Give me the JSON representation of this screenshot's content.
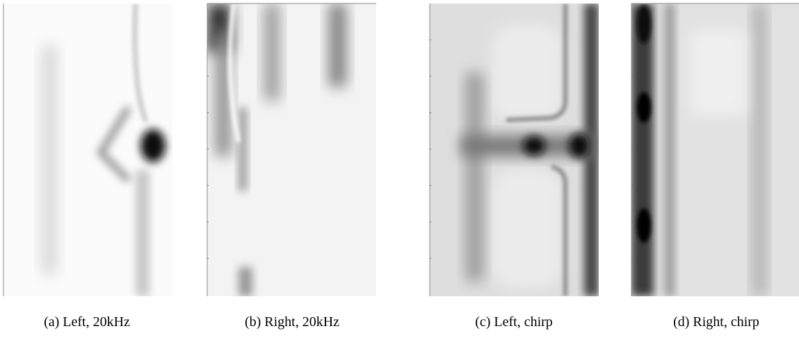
{
  "panels": [
    {
      "caption": "(a) Left, 20kHz"
    },
    {
      "caption": "(b) Right, 20kHz"
    },
    {
      "caption": "(c) Left, chirp"
    },
    {
      "caption": "(d) Right, chirp"
    }
  ]
}
